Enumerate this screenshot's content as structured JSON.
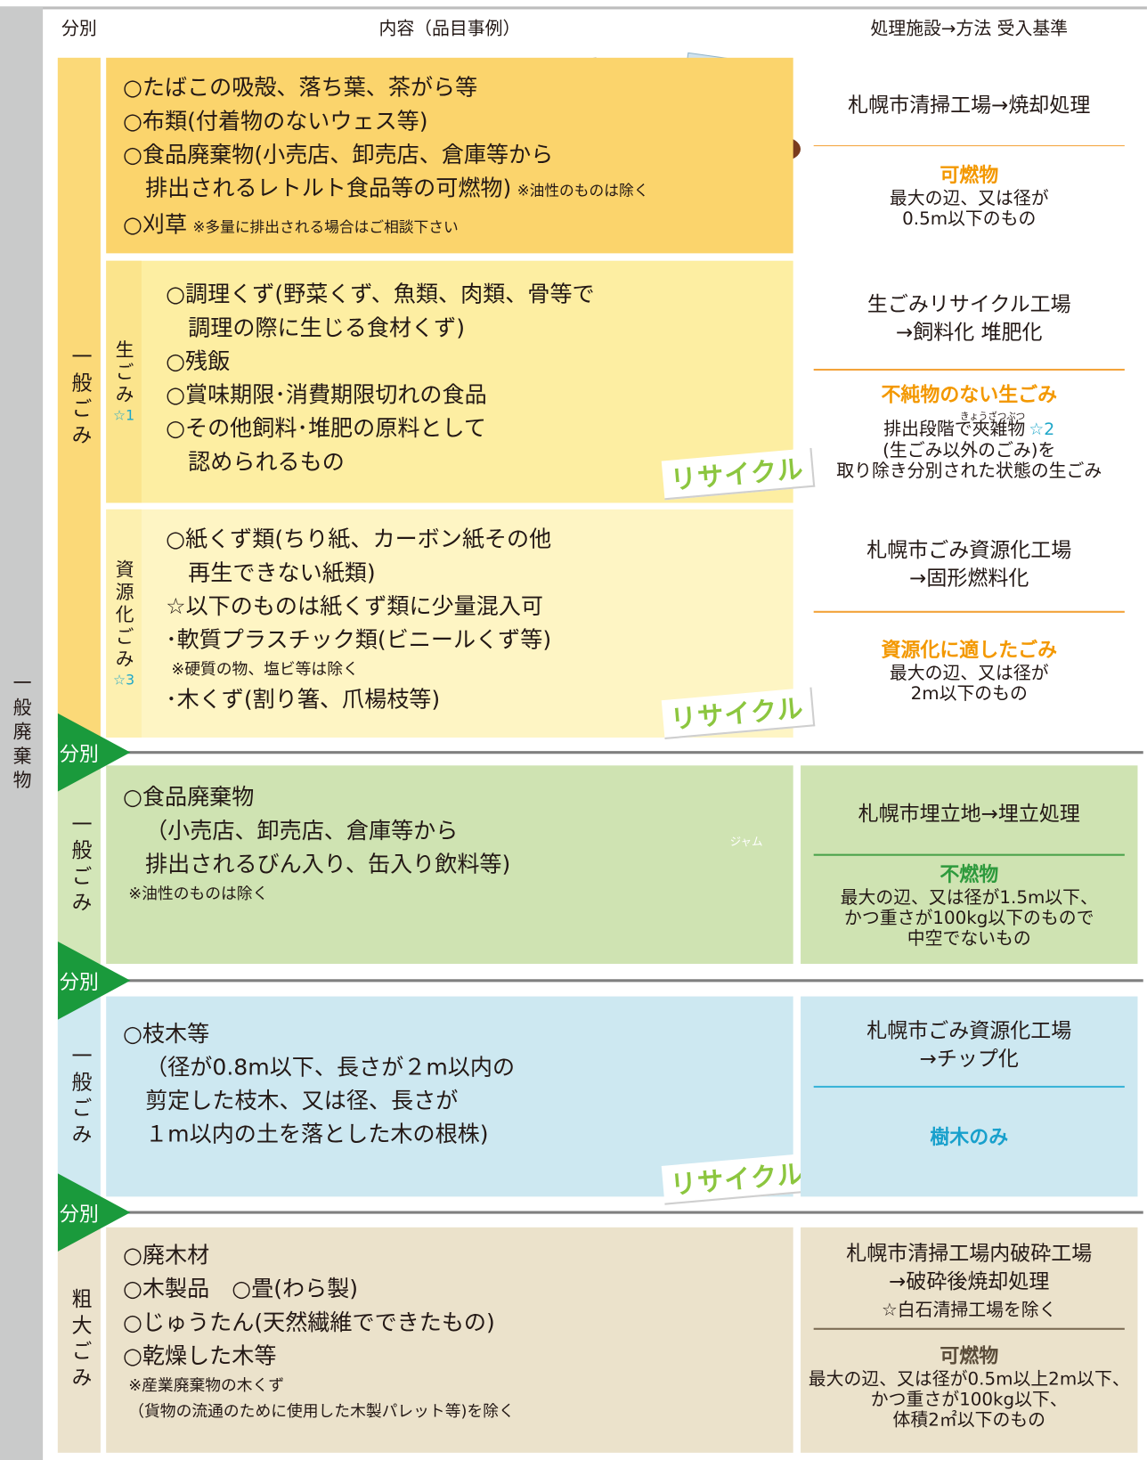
{
  "header": {
    "category": "分別",
    "content": "内容（品目事例）",
    "facility": "処理施設→方法 受入基準"
  },
  "side_label": "一般廃棄物",
  "dividers": [
    "分別",
    "分別",
    "分別"
  ],
  "illustration_text": "ジャム",
  "sections": [
    {
      "group": "一般ごみ",
      "rows": [
        {
          "items": [
            {
              "text": "○たばこの吸殻、落ち葉、茶がら等"
            },
            {
              "text": "○布類(付着物のないウェス等)"
            },
            {
              "text": "○食品廃棄物(小売店、卸売店、倉庫等から"
            },
            {
              "text": "排出されるレトルト食品等の可燃物)",
              "note": "※油性のものは除く"
            },
            {
              "text": "○刈草",
              "note": "※多量に排出される場合はご相談下さい"
            }
          ],
          "facility": [
            "札幌市清掃工場→焼却処理"
          ],
          "standard_title": "可燃物",
          "standard": [
            "最大の辺、又は径が",
            "0.5m以下のもの"
          ]
        },
        {
          "sub": "生ごみ",
          "sub_mark": "☆1",
          "items": [
            {
              "text": "○調理くず(野菜くず、魚類、肉類、骨等で"
            },
            {
              "text": "調理の際に生じる食材くず)"
            },
            {
              "text": "○残飯"
            },
            {
              "text": "○賞味期限･消費期限切れの食品"
            },
            {
              "text": "○その他飼料･堆肥の原料として"
            },
            {
              "text": "認められるもの"
            }
          ],
          "badge": "リサイクル",
          "facility": [
            "生ごみリサイクル工場",
            "→飼料化 堆肥化"
          ],
          "standard_title": "不純物のない生ごみ",
          "standard_ruby": "きょうざつぶつ",
          "standard_mark": "☆2",
          "standard": [
            "排出段階で夾雑物",
            "(生ごみ以外のごみ)を",
            "取り除き分別された状態の生ごみ"
          ]
        },
        {
          "sub": "資源化ごみ",
          "sub_mark": "☆3",
          "items": [
            {
              "text": "○紙くず類(ちり紙、カーボン紙その他"
            },
            {
              "text": "再生できない紙類)"
            },
            {
              "text": "☆以下のものは紙くず類に少量混入可"
            },
            {
              "text": "･軟質プラスチック類(ビニールくず等)"
            },
            {
              "note": "※硬質の物、塩ビ等は除く"
            },
            {
              "text": "･木くず(割り箸、爪楊枝等)"
            }
          ],
          "badge": "リサイクル",
          "facility": [
            "札幌市ごみ資源化工場",
            "→固形燃料化"
          ],
          "standard_title": "資源化に適したごみ",
          "standard": [
            "最大の辺、又は径が",
            "2m以下のもの"
          ]
        }
      ]
    },
    {
      "group": "一般ごみ",
      "rows": [
        {
          "items": [
            {
              "text": "○食品廃棄物"
            },
            {
              "text": "（小売店、卸売店、倉庫等から"
            },
            {
              "text": "排出されるびん入り、缶入り飲料等)"
            },
            {
              "note": "※油性のものは除く"
            }
          ],
          "facility": [
            "札幌市埋立地→埋立処理"
          ],
          "standard_title": "不燃物",
          "standard": [
            "最大の辺、又は径が1.5m以下、",
            "かつ重さが100kg以下のもので",
            "中空でないもの"
          ]
        }
      ]
    },
    {
      "group": "一般ごみ",
      "rows": [
        {
          "items": [
            {
              "text": "○枝木等"
            },
            {
              "text": "（径が0.8m以下、長さが２m以内の"
            },
            {
              "text": "剪定した枝木、又は径、長さが"
            },
            {
              "text": "１m以内の土を落とした木の根株)"
            }
          ],
          "badge": "リサイクル",
          "facility": [
            "札幌市ごみ資源化工場",
            "→チップ化"
          ],
          "standard_title": "樹木のみ",
          "standard": []
        }
      ]
    },
    {
      "group": "粗大ごみ",
      "rows": [
        {
          "items": [
            {
              "text": "○廃木材"
            },
            {
              "text": "○木製品　○畳(わら製)"
            },
            {
              "text": "○じゅうたん(天然繊維でできたもの)"
            },
            {
              "text": "○乾燥した木等"
            },
            {
              "note": "※産業廃棄物の木くず"
            },
            {
              "note": "（貨物の流通のために使用した木製パレット等)を除く"
            }
          ],
          "facility": [
            "札幌市清掃工場内破砕工場",
            "→破砕後焼却処理",
            "☆白石清掃工場を除く"
          ],
          "standard_title": "可燃物",
          "standard": [
            "最大の辺、又は径が0.5m以上2m以下、",
            "かつ重さが100kg以下、",
            "体積2㎡以下のもの"
          ]
        }
      ]
    }
  ]
}
